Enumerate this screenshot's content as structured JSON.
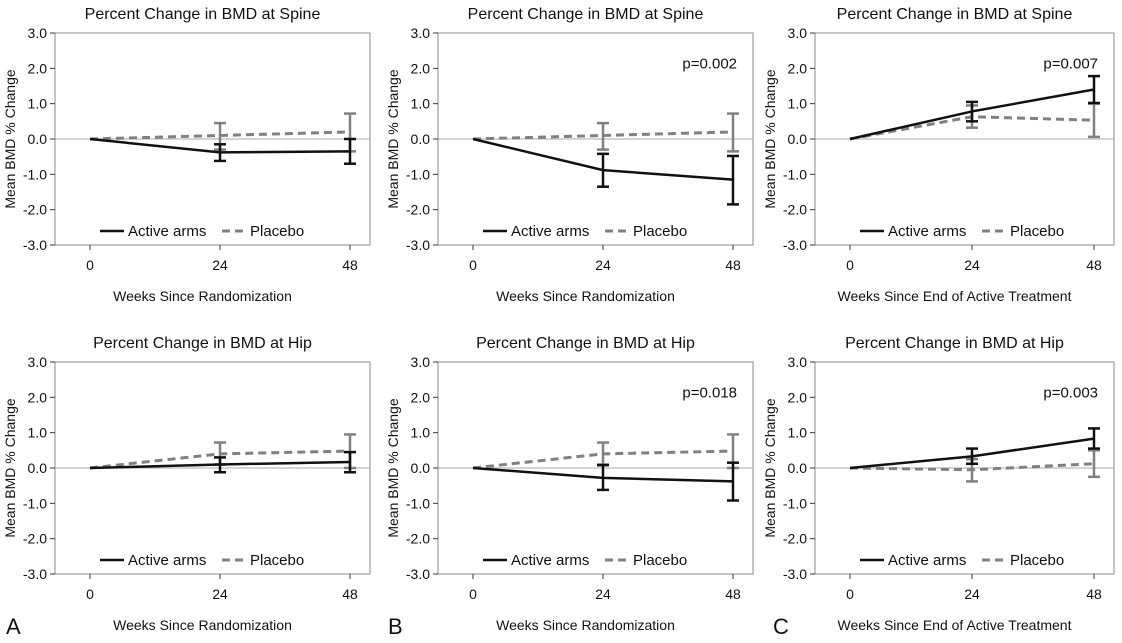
{
  "panel_letters": [
    "A",
    "B",
    "C"
  ],
  "chart_data": [
    {
      "type": "line",
      "title": "Percent Change in BMD at Spine",
      "xlabel": "Weeks Since Randomization",
      "ylabel": "Mean BMD % Change",
      "x": [
        0,
        24,
        48
      ],
      "ylim": [
        -3.0,
        3.0
      ],
      "yticks": [
        "-3.0",
        "-2.0",
        "-1.0",
        "0.0",
        "1.0",
        "2.0",
        "3.0"
      ],
      "xticks": [
        "0",
        "24",
        "48"
      ],
      "legend_position": "bottom",
      "series": [
        {
          "name": "Active arms",
          "color": "#111111",
          "style": "solid",
          "values": [
            0,
            -0.38,
            -0.35
          ],
          "err_low": [
            0,
            -0.62,
            -0.7
          ],
          "err_high": [
            0,
            -0.15,
            0.0
          ]
        },
        {
          "name": "Placebo",
          "color": "#808080",
          "style": "dashed",
          "values": [
            0,
            0.1,
            0.2
          ],
          "err_low": [
            0,
            -0.3,
            -0.35
          ],
          "err_high": [
            0,
            0.45,
            0.72
          ]
        }
      ]
    },
    {
      "type": "line",
      "title": "Percent Change in BMD at Spine",
      "xlabel": "Weeks Since Randomization",
      "ylabel": "Mean BMD % Change",
      "annotation": "p=0.002",
      "x": [
        0,
        24,
        48
      ],
      "ylim": [
        -3.0,
        3.0
      ],
      "yticks": [
        "-3.0",
        "-2.0",
        "-1.0",
        "0.0",
        "1.0",
        "2.0",
        "3.0"
      ],
      "xticks": [
        "0",
        "24",
        "48"
      ],
      "legend_position": "bottom",
      "series": [
        {
          "name": "Active arms",
          "color": "#111111",
          "style": "solid",
          "values": [
            0,
            -0.88,
            -1.15
          ],
          "err_low": [
            0,
            -1.35,
            -1.85
          ],
          "err_high": [
            0,
            -0.42,
            -0.48
          ]
        },
        {
          "name": "Placebo",
          "color": "#808080",
          "style": "dashed",
          "values": [
            0,
            0.1,
            0.2
          ],
          "err_low": [
            0,
            -0.3,
            -0.35
          ],
          "err_high": [
            0,
            0.45,
            0.72
          ]
        }
      ]
    },
    {
      "type": "line",
      "title": "Percent Change in BMD at Spine",
      "xlabel": "Weeks Since End of Active Treatment",
      "ylabel": "Mean BMD % Change",
      "annotation": "p=0.007",
      "x": [
        0,
        24,
        48
      ],
      "ylim": [
        -3.0,
        3.0
      ],
      "yticks": [
        "-3.0",
        "-2.0",
        "-1.0",
        "0.0",
        "1.0",
        "2.0",
        "3.0"
      ],
      "xticks": [
        "0",
        "24",
        "48"
      ],
      "legend_position": "bottom",
      "series": [
        {
          "name": "Active arms",
          "color": "#111111",
          "style": "solid",
          "values": [
            0,
            0.78,
            1.4
          ],
          "err_low": [
            0,
            0.5,
            1.02
          ],
          "err_high": [
            0,
            1.05,
            1.78
          ]
        },
        {
          "name": "Placebo",
          "color": "#808080",
          "style": "dashed",
          "values": [
            0,
            0.63,
            0.53
          ],
          "err_low": [
            0,
            0.32,
            0.06
          ],
          "err_high": [
            0,
            0.95,
            1.0
          ]
        }
      ]
    },
    {
      "type": "line",
      "title": "Percent Change in BMD at Hip",
      "xlabel": "Weeks Since Randomization",
      "ylabel": "Mean BMD % Change",
      "x": [
        0,
        24,
        48
      ],
      "ylim": [
        -3.0,
        3.0
      ],
      "yticks": [
        "-3.0",
        "-2.0",
        "-1.0",
        "0.0",
        "1.0",
        "2.0",
        "3.0"
      ],
      "xticks": [
        "0",
        "24",
        "48"
      ],
      "legend_position": "bottom",
      "series": [
        {
          "name": "Active arms",
          "color": "#111111",
          "style": "solid",
          "values": [
            0,
            0.1,
            0.17
          ],
          "err_low": [
            0,
            -0.12,
            -0.12
          ],
          "err_high": [
            0,
            0.3,
            0.45
          ]
        },
        {
          "name": "Placebo",
          "color": "#808080",
          "style": "dashed",
          "values": [
            0,
            0.4,
            0.48
          ],
          "err_low": [
            0,
            0.1,
            0.0
          ],
          "err_high": [
            0,
            0.72,
            0.95
          ]
        }
      ]
    },
    {
      "type": "line",
      "title": "Percent Change in BMD at Hip",
      "xlabel": "Weeks Since Randomization",
      "ylabel": "Mean BMD % Change",
      "annotation": "p=0.018",
      "x": [
        0,
        24,
        48
      ],
      "ylim": [
        -3.0,
        3.0
      ],
      "yticks": [
        "-3.0",
        "-2.0",
        "-1.0",
        "0.0",
        "1.0",
        "2.0",
        "3.0"
      ],
      "xticks": [
        "0",
        "24",
        "48"
      ],
      "legend_position": "bottom",
      "series": [
        {
          "name": "Active arms",
          "color": "#111111",
          "style": "solid",
          "values": [
            0,
            -0.28,
            -0.38
          ],
          "err_low": [
            0,
            -0.62,
            -0.92
          ],
          "err_high": [
            0,
            0.08,
            0.15
          ]
        },
        {
          "name": "Placebo",
          "color": "#808080",
          "style": "dashed",
          "values": [
            0,
            0.4,
            0.48
          ],
          "err_low": [
            0,
            0.1,
            0.0
          ],
          "err_high": [
            0,
            0.72,
            0.95
          ]
        }
      ]
    },
    {
      "type": "line",
      "title": "Percent Change in BMD at Hip",
      "xlabel": "Weeks Since End of Active Treatment",
      "ylabel": "Mean BMD % Change",
      "annotation": "p=0.003",
      "x": [
        0,
        24,
        48
      ],
      "ylim": [
        -3.0,
        3.0
      ],
      "yticks": [
        "-3.0",
        "-2.0",
        "-1.0",
        "0.0",
        "1.0",
        "2.0",
        "3.0"
      ],
      "xticks": [
        "0",
        "24",
        "48"
      ],
      "legend_position": "bottom",
      "series": [
        {
          "name": "Active arms",
          "color": "#111111",
          "style": "solid",
          "values": [
            0,
            0.33,
            0.83
          ],
          "err_low": [
            0,
            0.12,
            0.55
          ],
          "err_high": [
            0,
            0.55,
            1.12
          ]
        },
        {
          "name": "Placebo",
          "color": "#808080",
          "style": "dashed",
          "values": [
            0,
            -0.05,
            0.12
          ],
          "err_low": [
            0,
            -0.38,
            -0.25
          ],
          "err_high": [
            0,
            0.25,
            0.5
          ]
        }
      ]
    }
  ]
}
